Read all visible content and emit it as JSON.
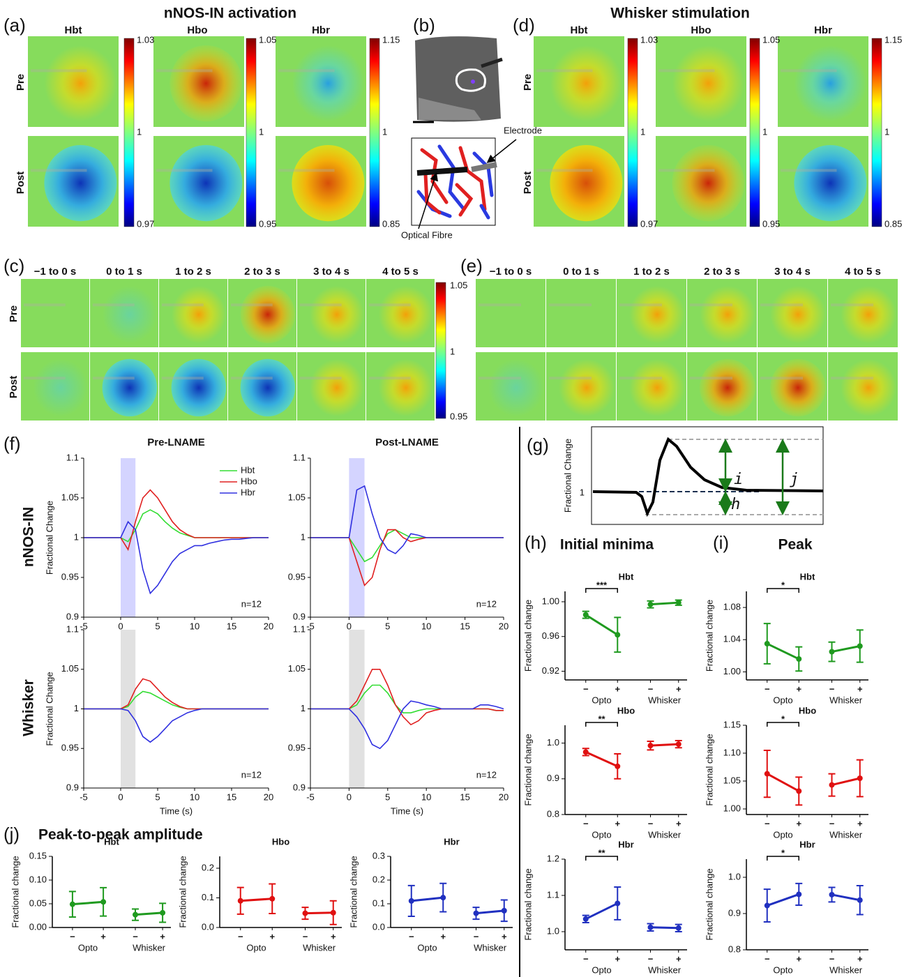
{
  "labels": {
    "a": "(a)",
    "b": "(b)",
    "c": "(c)",
    "d": "(d)",
    "e": "(e)",
    "f": "(f)",
    "g": "(g)",
    "h": "(h)",
    "i": "(i)",
    "j": "(j)"
  },
  "titles": {
    "opto": "nNOS-IN activation",
    "whisker": "Whisker stimulation",
    "pre_lname": "Pre-LNAME",
    "post_lname": "Post-LNAME",
    "minima": "Initial minima",
    "peak": "Peak",
    "p2p": "Peak-to-peak amplitude"
  },
  "maps": {
    "columns": [
      "Hbt",
      "Hbo",
      "Hbr"
    ],
    "rows": [
      "Pre",
      "Post"
    ],
    "colorbars": [
      [
        1.03,
        1,
        0.97
      ],
      [
        1.05,
        1,
        0.95
      ],
      [
        1.15,
        1,
        0.85
      ]
    ],
    "windows": [
      "−1 to 0 s",
      "0 to 1 s",
      "1 to 2 s",
      "2 to 3 s",
      "3 to 4 s",
      "4 to 5 s"
    ],
    "time_colorbar": [
      1.05,
      1,
      0.95
    ]
  },
  "schematic": {
    "electrode": "Electrode",
    "fibre": "Optical Fibre"
  },
  "trace_rows": [
    "nNOS-IN",
    "Whisker"
  ],
  "g": {
    "ylabel": "Fractional Change",
    "baseline": 1,
    "i": "i",
    "j": "j",
    "h": "h"
  },
  "chart_data": [
    {
      "type": "line",
      "title": "Pre-LNAME",
      "ylabel": "Fractional Change",
      "x": [
        -5,
        -4,
        -3,
        -2,
        -1,
        0,
        1,
        2,
        3,
        4,
        5,
        6,
        7,
        8,
        9,
        10,
        11,
        12,
        13,
        14,
        15,
        16,
        17,
        18,
        19,
        20
      ],
      "xlim": [
        -5,
        20
      ],
      "ylim": [
        0.9,
        1.1
      ],
      "xticks": [
        -5,
        0,
        5,
        10,
        15,
        20
      ],
      "yticks": [
        0.9,
        0.95,
        1,
        1.05,
        1.1
      ],
      "stimulus": [
        0,
        2
      ],
      "stimulus_color": "#c9c9ff",
      "annotation": "n=12",
      "legend": "top-right",
      "series": [
        {
          "name": "Hbt",
          "color": "#33dd33",
          "values": [
            1,
            1,
            1,
            1,
            1,
            1,
            0.995,
            1.01,
            1.03,
            1.035,
            1.03,
            1.02,
            1.012,
            1.006,
            1.003,
            1,
            1,
            1,
            1,
            1,
            1,
            1,
            1,
            1,
            1,
            1
          ]
        },
        {
          "name": "Hbo",
          "color": "#e02020",
          "values": [
            1,
            1,
            1,
            1,
            1,
            1,
            0.985,
            1.02,
            1.05,
            1.06,
            1.05,
            1.035,
            1.02,
            1.01,
            1.004,
            1,
            1,
            1,
            1,
            1,
            1,
            1,
            1,
            1,
            1,
            1
          ]
        },
        {
          "name": "Hbr",
          "color": "#3030e0",
          "values": [
            1,
            1,
            1,
            1,
            1,
            1,
            1.02,
            1.01,
            0.96,
            0.93,
            0.94,
            0.955,
            0.97,
            0.98,
            0.985,
            0.99,
            0.99,
            0.993,
            0.995,
            0.997,
            0.998,
            0.998,
            0.999,
            1,
            1,
            1
          ]
        }
      ]
    },
    {
      "type": "line",
      "title": "Post-LNAME",
      "x": [
        -5,
        -4,
        -3,
        -2,
        -1,
        0,
        1,
        2,
        3,
        4,
        5,
        6,
        7,
        8,
        9,
        10,
        11,
        12,
        13,
        14,
        15,
        16,
        17,
        18,
        19,
        20
      ],
      "xlim": [
        -5,
        20
      ],
      "ylim": [
        0.9,
        1.1
      ],
      "xticks": [
        -5,
        0,
        5,
        10,
        15,
        20
      ],
      "yticks": [
        0.9,
        0.95,
        1,
        1.05,
        1.1
      ],
      "stimulus": [
        0,
        2
      ],
      "stimulus_color": "#c9c9ff",
      "annotation": "n=12",
      "series": [
        {
          "name": "Hbt",
          "color": "#33dd33",
          "values": [
            1,
            1,
            1,
            1,
            1,
            1,
            0.985,
            0.97,
            0.975,
            0.99,
            1.005,
            1.01,
            1.005,
            1,
            1,
            1,
            1,
            1,
            1,
            1,
            1,
            1,
            1,
            1,
            1,
            1
          ]
        },
        {
          "name": "Hbo",
          "color": "#e02020",
          "values": [
            1,
            1,
            1,
            1,
            1,
            1,
            0.97,
            0.94,
            0.95,
            0.985,
            1.01,
            1.01,
            1,
            0.995,
            0.998,
            1,
            1,
            1,
            1,
            1,
            1,
            1,
            1,
            1,
            1,
            1
          ]
        },
        {
          "name": "Hbr",
          "color": "#3030e0",
          "values": [
            1,
            1,
            1,
            1,
            1,
            1,
            1.06,
            1.065,
            1.03,
            1,
            0.985,
            0.98,
            0.99,
            1.005,
            1.003,
            1,
            1,
            1,
            1,
            1,
            1,
            1,
            1,
            1,
            1,
            1
          ]
        }
      ]
    },
    {
      "type": "line",
      "ylabel": "Fractional Change",
      "xlabel": "Time (s)",
      "x": [
        -5,
        -4,
        -3,
        -2,
        -1,
        0,
        1,
        2,
        3,
        4,
        5,
        6,
        7,
        8,
        9,
        10,
        11,
        12,
        13,
        14,
        15,
        16,
        17,
        18,
        19,
        20
      ],
      "xlim": [
        -5,
        20
      ],
      "ylim": [
        0.9,
        1.1
      ],
      "xticks": [
        -5,
        0,
        5,
        10,
        15,
        20
      ],
      "yticks": [
        0.9,
        0.95,
        1,
        1.05,
        1.1
      ],
      "stimulus": [
        0,
        2
      ],
      "stimulus_color": "#d9d9d9",
      "annotation": "n=12",
      "series": [
        {
          "name": "Hbt",
          "color": "#33dd33",
          "values": [
            1,
            1,
            1,
            1,
            1,
            1,
            1.003,
            1.015,
            1.022,
            1.02,
            1.015,
            1.01,
            1.005,
            1.002,
            1,
            1,
            1,
            1,
            1,
            1,
            1,
            1,
            1,
            1,
            1,
            1
          ]
        },
        {
          "name": "Hbo",
          "color": "#e02020",
          "values": [
            1,
            1,
            1,
            1,
            1,
            1,
            1.005,
            1.025,
            1.038,
            1.035,
            1.025,
            1.015,
            1.008,
            1.003,
            1,
            1,
            1,
            1,
            1,
            1,
            1,
            1,
            1,
            1,
            1,
            1
          ]
        },
        {
          "name": "Hbr",
          "color": "#3030e0",
          "values": [
            1,
            1,
            1,
            1,
            1,
            1,
            0.998,
            0.985,
            0.965,
            0.958,
            0.965,
            0.975,
            0.985,
            0.99,
            0.995,
            0.998,
            1,
            1,
            1,
            1,
            1,
            1,
            1,
            1,
            1,
            1
          ]
        }
      ]
    },
    {
      "type": "line",
      "xlabel": "Time (s)",
      "x": [
        -5,
        -4,
        -3,
        -2,
        -1,
        0,
        1,
        2,
        3,
        4,
        5,
        6,
        7,
        8,
        9,
        10,
        11,
        12,
        13,
        14,
        15,
        16,
        17,
        18,
        19,
        20
      ],
      "xlim": [
        -5,
        20
      ],
      "ylim": [
        0.9,
        1.1
      ],
      "xticks": [
        -5,
        0,
        5,
        10,
        15,
        20
      ],
      "yticks": [
        0.9,
        0.95,
        1,
        1.05,
        1.1
      ],
      "stimulus": [
        0,
        2
      ],
      "stimulus_color": "#d9d9d9",
      "annotation": "n=12",
      "series": [
        {
          "name": "Hbt",
          "color": "#33dd33",
          "values": [
            1,
            1,
            1,
            1,
            1,
            1,
            1.005,
            1.02,
            1.03,
            1.03,
            1.02,
            1.005,
            0.995,
            0.995,
            0.998,
            1,
            1,
            1,
            1,
            1,
            1,
            1,
            1,
            1,
            0.998,
            0.998
          ]
        },
        {
          "name": "Hbo",
          "color": "#e02020",
          "values": [
            1,
            1,
            1,
            1,
            1,
            1,
            1.01,
            1.03,
            1.05,
            1.05,
            1.03,
            1.005,
            0.99,
            0.98,
            0.985,
            0.995,
            0.998,
            1,
            1,
            1,
            1,
            1,
            1,
            1,
            0.998,
            0.998
          ]
        },
        {
          "name": "Hbr",
          "color": "#3030e0",
          "values": [
            1,
            1,
            1,
            1,
            1,
            1,
            0.99,
            0.975,
            0.955,
            0.95,
            0.96,
            0.98,
            1,
            1.01,
            1.008,
            1.005,
            1.003,
            1,
            1,
            1,
            1,
            1,
            1.005,
            1.005,
            1.003,
            1
          ]
        }
      ]
    },
    {
      "type": "dot",
      "title": "Hbt",
      "color": "#1f9a1f",
      "categories": [
        "−",
        "+",
        "−",
        "+"
      ],
      "groups": [
        "Opto",
        "Whisker"
      ],
      "ylabel": "Fractional change",
      "values": [
        0.985,
        0.962,
        0.997,
        0.999
      ],
      "errors": [
        0.004,
        0.02,
        0.004,
        0.003
      ],
      "significance": "***",
      "ylim": [
        0.91,
        1.012
      ],
      "yticks": [
        0.92,
        0.96,
        {
          "value": 1,
          "label": "1.00"
        }
      ]
    },
    {
      "type": "dot",
      "title": "Hbo",
      "color": "#e01010",
      "categories": [
        "−",
        "+",
        "−",
        "+"
      ],
      "groups": [
        "Opto",
        "Whisker"
      ],
      "ylabel": "Fractional change",
      "values": [
        0.975,
        0.935,
        0.993,
        0.997
      ],
      "errors": [
        0.01,
        0.035,
        0.012,
        0.01
      ],
      "significance": "**",
      "ylim": [
        0.8,
        1.05
      ],
      "yticks": [
        0.8,
        0.9,
        {
          "value": 1,
          "label": "1.0"
        }
      ]
    },
    {
      "type": "dot",
      "title": "Hbr",
      "color": "#2030c0",
      "categories": [
        "−",
        "+",
        "−",
        "+"
      ],
      "groups": [
        "Opto",
        "Whisker"
      ],
      "ylabel": "Fractional change",
      "values": [
        1.035,
        1.078,
        1.012,
        1.01
      ],
      "errors": [
        0.01,
        0.045,
        0.01,
        0.01
      ],
      "significance": "**",
      "ylim": [
        0.95,
        1.2
      ],
      "yticks": [
        {
          "value": 1,
          "label": "1.0"
        },
        1.1,
        1.2
      ]
    },
    {
      "type": "dot",
      "title": "Hbt",
      "color": "#1f9a1f",
      "categories": [
        "−",
        "+",
        "−",
        "+"
      ],
      "groups": [
        "Opto",
        "Whisker"
      ],
      "ylabel": "Fractional change",
      "values": [
        1.035,
        1.016,
        1.025,
        1.032
      ],
      "errors": [
        0.025,
        0.015,
        0.012,
        0.02
      ],
      "significance": "*",
      "ylim": [
        0.99,
        1.1
      ],
      "yticks": [
        {
          "value": 1,
          "label": "1.00"
        },
        1.04,
        1.08
      ]
    },
    {
      "type": "dot",
      "title": "Hbo",
      "color": "#e01010",
      "categories": [
        "−",
        "+",
        "−",
        "+"
      ],
      "groups": [
        "Opto",
        "Whisker"
      ],
      "ylabel": "Fractional change",
      "values": [
        1.063,
        1.032,
        1.043,
        1.055
      ],
      "errors": [
        0.042,
        0.025,
        0.02,
        0.033
      ],
      "significance": "*",
      "ylim": [
        0.99,
        1.15
      ],
      "yticks": [
        {
          "value": 1,
          "label": "1.00"
        },
        1.05,
        {
          "value": 1.1,
          "label": "1.10"
        },
        1.15
      ]
    },
    {
      "type": "dot",
      "title": "Hbr",
      "color": "#2030c0",
      "categories": [
        "−",
        "+",
        "−",
        "+"
      ],
      "groups": [
        "Opto",
        "Whisker"
      ],
      "ylabel": "Fractional change",
      "values": [
        0.922,
        0.953,
        0.952,
        0.937
      ],
      "errors": [
        0.045,
        0.03,
        0.02,
        0.04
      ],
      "significance": "*",
      "ylim": [
        0.8,
        1.05
      ],
      "yticks": [
        0.8,
        0.9,
        {
          "value": 1,
          "label": "1.0"
        }
      ]
    },
    {
      "type": "dot",
      "title": "Hbt",
      "color": "#1f9a1f",
      "categories": [
        "−",
        "+",
        "−",
        "+"
      ],
      "groups": [
        "Opto",
        "Whisker"
      ],
      "ylabel": "Fractional change",
      "values": [
        0.049,
        0.054,
        0.027,
        0.031
      ],
      "errors": [
        0.027,
        0.03,
        0.012,
        0.02
      ],
      "ylim": [
        0,
        0.15
      ],
      "yticks": [
        {
          "value": 0,
          "label": "0.00"
        },
        0.05,
        {
          "value": 0.1,
          "label": "0.10"
        },
        0.15
      ]
    },
    {
      "type": "dot",
      "title": "Hbo",
      "color": "#e01010",
      "categories": [
        "−",
        "+",
        "−",
        "+"
      ],
      "groups": [
        "Opto",
        "Whisker"
      ],
      "ylabel": "Fractional change",
      "values": [
        0.09,
        0.097,
        0.048,
        0.05
      ],
      "errors": [
        0.045,
        0.05,
        0.02,
        0.04
      ],
      "ylim": [
        0,
        0.24
      ],
      "yticks": [
        {
          "value": 0,
          "label": "0.0"
        },
        0.1,
        0.2
      ]
    },
    {
      "type": "dot",
      "title": "Hbr",
      "color": "#2030c0",
      "categories": [
        "−",
        "+",
        "−",
        "+"
      ],
      "groups": [
        "Opto",
        "Whisker"
      ],
      "ylabel": "Fractional change",
      "values": [
        0.112,
        0.126,
        0.06,
        0.071
      ],
      "errors": [
        0.065,
        0.06,
        0.025,
        0.045
      ],
      "ylim": [
        0,
        0.3
      ],
      "yticks": [
        {
          "value": 0,
          "label": "0.0"
        },
        0.1,
        0.2,
        0.3
      ]
    }
  ]
}
